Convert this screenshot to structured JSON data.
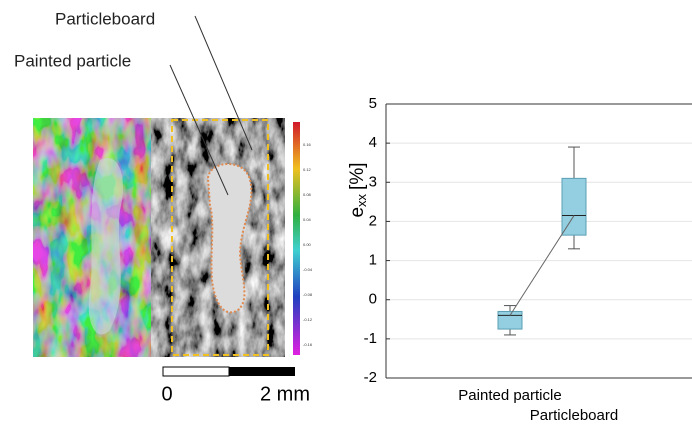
{
  "figure": {
    "particleboard_label": "Particleboard",
    "painted_particle_label": "Painted particle",
    "scale_start": "0",
    "scale_end": "2 mm",
    "colorbar_labels": [
      "0.16",
      "0.12",
      "0.08",
      "0.04",
      "0.00",
      "-0.04",
      "-0.08",
      "-0.12",
      "-0.16"
    ]
  },
  "chart_data": {
    "type": "box",
    "ylabel": [
      "e",
      "xx",
      "[%]"
    ],
    "categories": [
      "Painted particle",
      "Particleboard"
    ],
    "stats": {
      "whislo": [
        -0.9,
        1.3
      ],
      "q1": [
        -0.75,
        1.65
      ],
      "med": [
        -0.4,
        2.15
      ],
      "q3": [
        -0.3,
        3.1
      ],
      "whishi": [
        -0.15,
        3.9
      ]
    },
    "color": "#93cfe0",
    "ylim": [
      -2,
      5
    ],
    "yticks": [
      -2,
      -1,
      0,
      1,
      2,
      3,
      4,
      5
    ],
    "grid": true
  }
}
